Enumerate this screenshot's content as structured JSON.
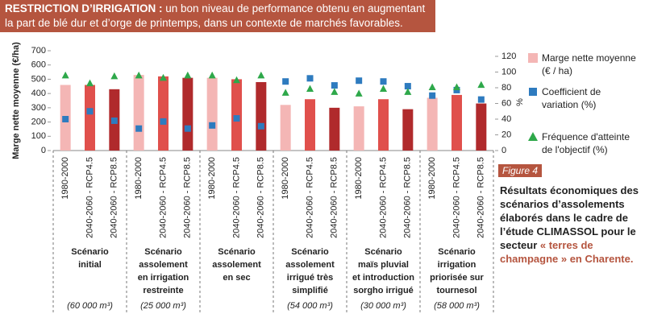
{
  "chart_data": {
    "type": "bar",
    "title_bold": "RESTRICTION D’IRRIGATION :",
    "title": "un bon niveau de performance obtenu en augmentant la part de blé dur et d’orge de printemps, dans un contexte de marchés favorables.",
    "y_label": "Marge nette moyenne (€/ha)",
    "y2_label": "%",
    "ylim": [
      0,
      700
    ],
    "yticks": [
      0,
      100,
      200,
      300,
      400,
      500,
      600,
      700
    ],
    "y2lim": [
      0,
      120
    ],
    "y2ticks": [
      0,
      20,
      40,
      60,
      80,
      100,
      120
    ],
    "categories": [
      "1980-2000",
      "2040-2060 - RCP4.5",
      "2040-2060 - RCP8.5",
      "1980-2000",
      "2040-2060 - RCP4.5",
      "2040-2060 - RCP8.5",
      "1980-2000",
      "2040-2060 - RCP4.5",
      "2040-2060 - RCP8.5",
      "1980-2000",
      "2040-2060 - RCP4.5",
      "2040-2060 - RCP8.5",
      "1980-2000",
      "2040-2060 - RCP4.5",
      "2040-2060 - RCP8.5",
      "1980-2000",
      "2040-2060 - RCP4.5",
      "2040-2060 - RCP8.5"
    ],
    "groups": [
      {
        "label": [
          "Scénario",
          "initial"
        ],
        "volume": "(60 000 m³)"
      },
      {
        "label": [
          "Scénario",
          "assolement",
          "en irrigation",
          "restreinte"
        ],
        "volume": "(25 000 m³)"
      },
      {
        "label": [
          "Scénario",
          "assolement",
          "en sec"
        ],
        "volume": ""
      },
      {
        "label": [
          "Scénario",
          "assolement",
          "irrigué très",
          "simplifié"
        ],
        "volume": "(54 000 m³)"
      },
      {
        "label": [
          "Scénario",
          "maïs pluvial",
          "et introduction",
          "sorgho irrigué"
        ],
        "volume": "(30 000 m³)"
      },
      {
        "label": [
          "Scénario",
          "irrigation",
          "priorisée sur",
          "tournesol"
        ],
        "volume": "(58 000 m³)"
      }
    ],
    "series": [
      {
        "name": "Marge nette moyenne (€ / ha)",
        "marker": "bar",
        "colors": [
          "#f4b6b5",
          "#e0504c",
          "#b02a2c"
        ],
        "values": [
          460,
          460,
          430,
          530,
          520,
          510,
          510,
          500,
          480,
          320,
          360,
          300,
          310,
          360,
          290,
          370,
          390,
          330
        ]
      },
      {
        "name": "Coefficient de variation (%)",
        "marker": "square",
        "axis": "y2",
        "color": "#2e7bbf",
        "values": [
          40,
          50,
          38,
          28,
          37,
          28,
          32,
          41,
          31,
          88,
          92,
          83,
          89,
          88,
          82,
          70,
          77,
          65
        ]
      },
      {
        "name": "Fréquence d'atteinte de l'objectif (%)",
        "marker": "triangle",
        "axis": "y2",
        "color": "#2ea84a",
        "values": [
          96,
          86,
          95,
          96,
          93,
          96,
          96,
          90,
          96,
          74,
          79,
          75,
          73,
          79,
          75,
          81,
          81,
          84
        ]
      }
    ],
    "figure_label": "Figure 4",
    "caption": "Résultats économiques des scénarios d’assolements élaborés dans le cadre de l’étude CLIMASSOL pour le secteur",
    "caption_highlight": "« terres de champagne » en Charente."
  }
}
